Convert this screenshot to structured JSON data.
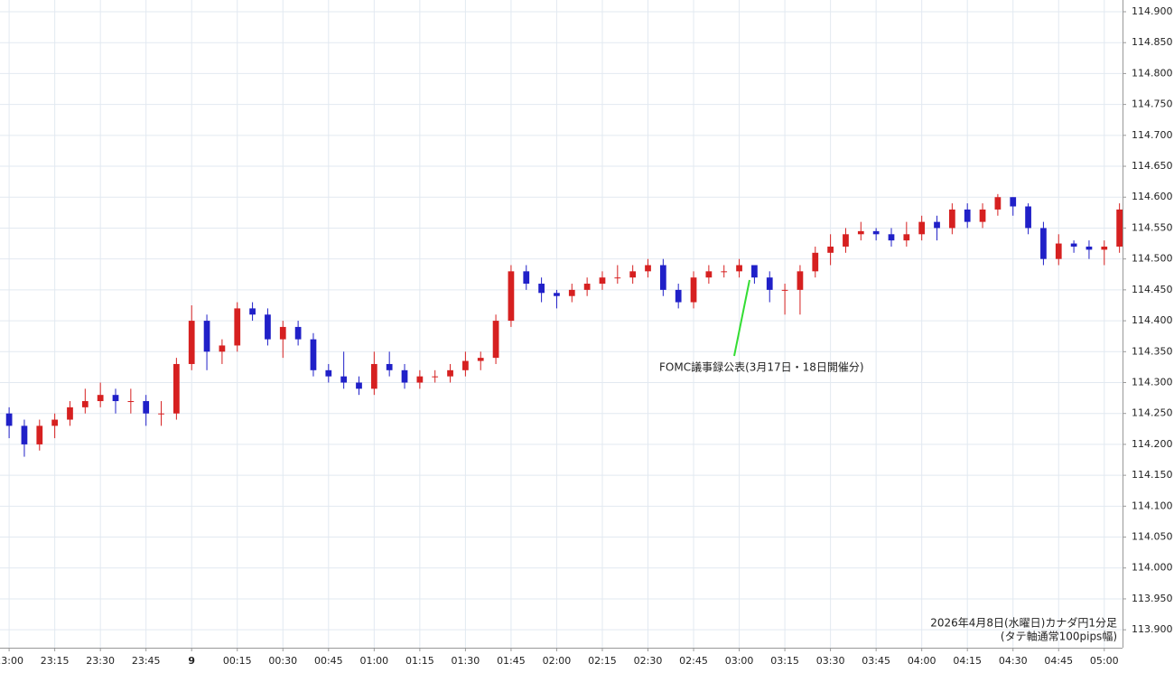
{
  "chart_data": {
    "type": "candlestick",
    "annotation": "FOMC議事録公表(3月17日・18日開催分)",
    "footnote": [
      "2026年4月8日(水曜日)カナダ円1分足",
      "(タテ軸通常100pips幅)"
    ],
    "up_color": "#d62020",
    "down_color": "#2020c8",
    "grid": true,
    "x": [
      0,
      5,
      10,
      15,
      20,
      25,
      30,
      35,
      40,
      45,
      50,
      55,
      60,
      65,
      70,
      75,
      80,
      85,
      90,
      95,
      100,
      105,
      110,
      115,
      120,
      125,
      130,
      135,
      140,
      145,
      150,
      155,
      160,
      165,
      170,
      175,
      180,
      185,
      190,
      195,
      200,
      205,
      210,
      215,
      220,
      225,
      230,
      235,
      240,
      245,
      250,
      255,
      260,
      265,
      270,
      275,
      280,
      285,
      290,
      295,
      300,
      305,
      310,
      315,
      320,
      325,
      330,
      335,
      340,
      345,
      350,
      355,
      360,
      365
    ],
    "open": [
      114.25,
      114.23,
      114.2,
      114.23,
      114.24,
      114.26,
      114.27,
      114.28,
      114.27,
      114.27,
      114.25,
      114.25,
      114.33,
      114.4,
      114.35,
      114.36,
      114.42,
      114.41,
      114.37,
      114.39,
      114.37,
      114.32,
      114.31,
      114.3,
      114.29,
      114.33,
      114.32,
      114.3,
      114.31,
      114.31,
      114.32,
      114.335,
      114.34,
      114.4,
      114.48,
      114.46,
      114.445,
      114.44,
      114.45,
      114.46,
      114.47,
      114.47,
      114.48,
      114.49,
      114.45,
      114.43,
      114.47,
      114.48,
      114.48,
      114.49,
      114.47,
      114.45,
      114.45,
      114.48,
      114.51,
      114.52,
      114.54,
      114.545,
      114.54,
      114.53,
      114.54,
      114.56,
      114.55,
      114.58,
      114.56,
      114.58,
      114.6,
      114.585,
      114.55,
      114.5,
      114.525,
      114.52,
      114.515,
      114.52
    ],
    "high": [
      114.26,
      114.24,
      114.24,
      114.25,
      114.27,
      114.29,
      114.3,
      114.29,
      114.29,
      114.28,
      114.27,
      114.34,
      114.425,
      114.41,
      114.37,
      114.43,
      114.43,
      114.42,
      114.4,
      114.4,
      114.38,
      114.33,
      114.35,
      114.31,
      114.35,
      114.35,
      114.33,
      114.32,
      114.32,
      114.33,
      114.35,
      114.35,
      114.41,
      114.49,
      114.49,
      114.47,
      114.45,
      114.46,
      114.47,
      114.48,
      114.49,
      114.49,
      114.5,
      114.5,
      114.46,
      114.48,
      114.49,
      114.49,
      114.5,
      114.49,
      114.48,
      114.46,
      114.49,
      114.52,
      114.54,
      114.55,
      114.56,
      114.55,
      114.55,
      114.56,
      114.57,
      114.57,
      114.59,
      114.59,
      114.59,
      114.605,
      114.6,
      114.59,
      114.56,
      114.54,
      114.53,
      114.53,
      114.53,
      114.59
    ],
    "low": [
      114.21,
      114.18,
      114.19,
      114.21,
      114.23,
      114.25,
      114.26,
      114.25,
      114.25,
      114.23,
      114.23,
      114.24,
      114.32,
      114.32,
      114.33,
      114.35,
      114.4,
      114.36,
      114.34,
      114.36,
      114.31,
      114.3,
      114.29,
      114.28,
      114.28,
      114.31,
      114.29,
      114.29,
      114.3,
      114.3,
      114.31,
      114.32,
      114.33,
      114.39,
      114.45,
      114.43,
      114.42,
      114.43,
      114.44,
      114.45,
      114.46,
      114.46,
      114.47,
      114.44,
      114.42,
      114.42,
      114.46,
      114.47,
      114.47,
      114.46,
      114.43,
      114.41,
      114.41,
      114.47,
      114.49,
      114.51,
      114.53,
      114.53,
      114.52,
      114.52,
      114.53,
      114.53,
      114.54,
      114.55,
      114.55,
      114.57,
      114.57,
      114.54,
      114.49,
      114.49,
      114.51,
      114.5,
      114.49,
      114.51
    ],
    "close": [
      114.23,
      114.2,
      114.23,
      114.24,
      114.26,
      114.27,
      114.28,
      114.27,
      114.27,
      114.25,
      114.25,
      114.33,
      114.4,
      114.35,
      114.36,
      114.42,
      114.41,
      114.37,
      114.39,
      114.37,
      114.32,
      114.31,
      114.3,
      114.29,
      114.33,
      114.32,
      114.3,
      114.31,
      114.31,
      114.32,
      114.335,
      114.34,
      114.4,
      114.48,
      114.46,
      114.445,
      114.44,
      114.45,
      114.46,
      114.47,
      114.47,
      114.48,
      114.49,
      114.45,
      114.43,
      114.47,
      114.48,
      114.48,
      114.49,
      114.47,
      114.45,
      114.45,
      114.48,
      114.51,
      114.52,
      114.54,
      114.545,
      114.54,
      114.53,
      114.54,
      114.56,
      114.55,
      114.58,
      114.56,
      114.58,
      114.6,
      114.585,
      114.55,
      114.5,
      114.525,
      114.52,
      114.515,
      114.52,
      114.58
    ],
    "xlim": [
      -3,
      366
    ],
    "xticks": [
      {
        "value": 0,
        "label": "23:00"
      },
      {
        "value": 15,
        "label": "23:15"
      },
      {
        "value": 30,
        "label": "23:30"
      },
      {
        "value": 45,
        "label": "23:45"
      },
      {
        "value": 60,
        "label": "9"
      },
      {
        "value": 75,
        "label": "00:15"
      },
      {
        "value": 90,
        "label": "00:30"
      },
      {
        "value": 105,
        "label": "00:45"
      },
      {
        "value": 120,
        "label": "01:00"
      },
      {
        "value": 135,
        "label": "01:15"
      },
      {
        "value": 150,
        "label": "01:30"
      },
      {
        "value": 165,
        "label": "01:45"
      },
      {
        "value": 180,
        "label": "02:00"
      },
      {
        "value": 195,
        "label": "02:15"
      },
      {
        "value": 210,
        "label": "02:30"
      },
      {
        "value": 225,
        "label": "02:45"
      },
      {
        "value": 240,
        "label": "03:00"
      },
      {
        "value": 255,
        "label": "03:15"
      },
      {
        "value": 270,
        "label": "03:30"
      },
      {
        "value": 285,
        "label": "03:45"
      },
      {
        "value": 300,
        "label": "04:00"
      },
      {
        "value": 315,
        "label": "04:15"
      },
      {
        "value": 330,
        "label": "04:30"
      },
      {
        "value": 345,
        "label": "04:45"
      },
      {
        "value": 360,
        "label": "05:00"
      }
    ],
    "ylim": [
      113.871,
      114.919
    ],
    "yticks": [
      {
        "value": 113.9,
        "label": "113.900"
      },
      {
        "value": 113.95,
        "label": "113.950"
      },
      {
        "value": 114.0,
        "label": "114.000"
      },
      {
        "value": 114.05,
        "label": "114.050"
      },
      {
        "value": 114.1,
        "label": "114.100"
      },
      {
        "value": 114.15,
        "label": "114.150"
      },
      {
        "value": 114.2,
        "label": "114.200"
      },
      {
        "value": 114.25,
        "label": "114.250"
      },
      {
        "value": 114.3,
        "label": "114.300"
      },
      {
        "value": 114.35,
        "label": "114.350"
      },
      {
        "value": 114.4,
        "label": "114.400"
      },
      {
        "value": 114.45,
        "label": "114.450"
      },
      {
        "value": 114.5,
        "label": "114.500"
      },
      {
        "value": 114.55,
        "label": "114.550"
      },
      {
        "value": 114.6,
        "label": "114.600"
      },
      {
        "value": 114.65,
        "label": "114.650"
      },
      {
        "value": 114.7,
        "label": "114.700"
      },
      {
        "value": 114.75,
        "label": "114.750"
      },
      {
        "value": 114.8,
        "label": "114.800"
      },
      {
        "value": 114.85,
        "label": "114.850"
      },
      {
        "value": 114.9,
        "label": "114.900"
      }
    ]
  }
}
